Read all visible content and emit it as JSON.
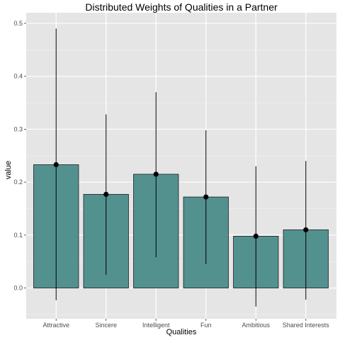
{
  "chart_data": {
    "type": "bar",
    "title": "Distributed Weights of Qualities in a Partner",
    "xlabel": "Qualities",
    "ylabel": "value",
    "categories": [
      "Attractive",
      "Sincere",
      "Intelligent",
      "Fun",
      "Ambitious",
      "Shared Interests"
    ],
    "values": [
      0.233,
      0.177,
      0.215,
      0.172,
      0.098,
      0.11
    ],
    "error_low": [
      -0.023,
      0.025,
      0.058,
      0.045,
      -0.035,
      -0.022
    ],
    "error_high": [
      0.49,
      0.328,
      0.37,
      0.298,
      0.23,
      0.24
    ],
    "ylim": [
      -0.058,
      0.52
    ],
    "yticks": [
      0.0,
      0.1,
      0.2,
      0.3,
      0.4,
      0.5
    ],
    "ytick_labels": [
      "0.0",
      "0.1",
      "0.2",
      "0.3",
      "0.4",
      "0.5"
    ],
    "grid": true,
    "bar_fill": "#53918f",
    "bar_stroke": "#1f1f1f",
    "panel_background": "#e5e5e5",
    "point_color": "#000000"
  }
}
